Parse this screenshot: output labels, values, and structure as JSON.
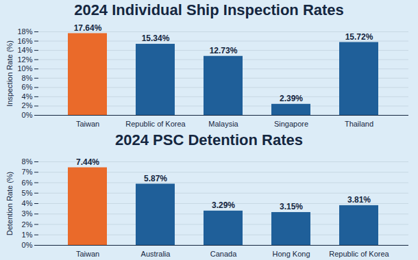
{
  "chart_data": [
    {
      "type": "bar",
      "title": "2024 Individual Ship Inspection Rates",
      "y_label": "Inspection Rate (%)",
      "categories": [
        "Taiwan",
        "Republic of Korea",
        "Malaysia",
        "Singapore",
        "Thailand"
      ],
      "values": [
        17.64,
        15.34,
        12.73,
        2.39,
        15.72
      ],
      "value_labels": [
        "17.64%",
        "15.34%",
        "12.73%",
        "2.39%",
        "15.72%"
      ],
      "colors": [
        "#ea6a2a",
        "#1f5f99",
        "#1f5f99",
        "#1f5f99",
        "#1f5f99"
      ],
      "ylim": [
        0,
        18
      ],
      "yticks": [
        {
          "value": 0,
          "label": "0%"
        },
        {
          "value": 2,
          "label": "2%"
        },
        {
          "value": 4,
          "label": "4%"
        },
        {
          "value": 6,
          "label": "6%"
        },
        {
          "value": 8,
          "label": "8%"
        },
        {
          "value": 10,
          "label": "10%"
        },
        {
          "value": 12,
          "label": "12%"
        },
        {
          "value": 14,
          "label": "14%"
        },
        {
          "value": 16,
          "label": "16%"
        },
        {
          "value": 18,
          "label": "18%"
        }
      ],
      "grid": true,
      "data_labels": true
    },
    {
      "type": "bar",
      "title": "2024 PSC Detention Rates",
      "y_label": "Detention Rate (%)",
      "categories": [
        "Taiwan",
        "Australia",
        "Canada",
        "Hong Kong",
        "Republic of Korea"
      ],
      "values": [
        7.44,
        5.87,
        3.29,
        3.15,
        3.81
      ],
      "value_labels": [
        "7.44%",
        "5.87%",
        "3.29%",
        "3.15%",
        "3.81%"
      ],
      "colors": [
        "#ea6a2a",
        "#1f5f99",
        "#1f5f99",
        "#1f5f99",
        "#1f5f99"
      ],
      "ylim": [
        0,
        8
      ],
      "yticks": [
        {
          "value": 0,
          "label": "0%"
        },
        {
          "value": 1,
          "label": "1%"
        },
        {
          "value": 2,
          "label": "2%"
        },
        {
          "value": 3,
          "label": "3%"
        },
        {
          "value": 4,
          "label": "4%"
        },
        {
          "value": 5,
          "label": "5%"
        },
        {
          "value": 6,
          "label": "6%"
        },
        {
          "value": 7,
          "label": "7%"
        },
        {
          "value": 8,
          "label": "8%"
        }
      ],
      "grid": true,
      "data_labels": true
    }
  ]
}
